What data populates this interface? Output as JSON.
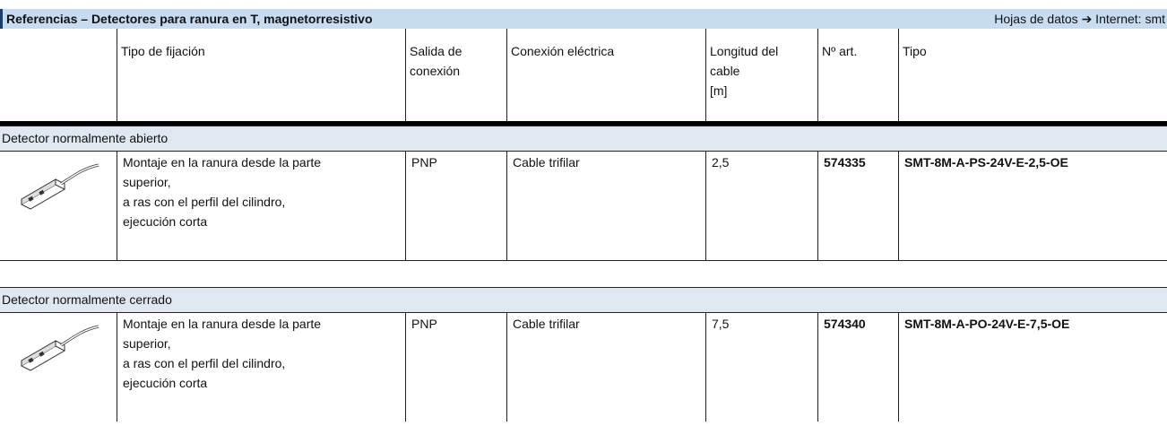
{
  "header": {
    "title": "Referencias – Detectores para ranura en T, magnetorresistivo",
    "link": "Hojas de datos ➔ Internet: smt"
  },
  "table": {
    "columns": [
      [
        "Tipo de fijación"
      ],
      [
        "Salida de",
        "conexión"
      ],
      [
        "Conexión eléctrica"
      ],
      [
        "Longitud del",
        "cable",
        "[m]"
      ],
      [
        "Nº art."
      ],
      [
        "Tipo"
      ]
    ],
    "sections": [
      {
        "title": "Detector normalmente abierto",
        "rows": [
          {
            "mounting": [
              "Montaje en la ranura desde la parte",
              "superior,",
              "a ras con el perfil del cilindro,",
              "ejecución corta"
            ],
            "output": "PNP",
            "connection": "Cable trifilar",
            "length": "2,5",
            "part": "574335",
            "type": "SMT-8M-A-PS-24V-E-2,5-OE"
          }
        ]
      },
      {
        "title": "Detector normalmente cerrado",
        "rows": [
          {
            "mounting": [
              "Montaje en la ranura desde la parte",
              "superior,",
              "a ras con el perfil del cilindro,",
              "ejecución corta"
            ],
            "output": "PNP",
            "connection": "Cable trifilar",
            "length": "7,5",
            "part": "574340",
            "type": "SMT-8M-A-PO-24V-E-7,5-OE"
          }
        ]
      }
    ]
  }
}
